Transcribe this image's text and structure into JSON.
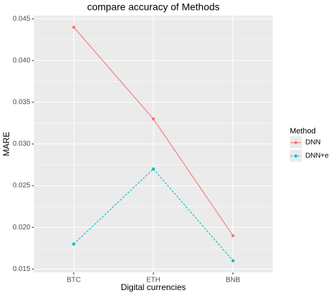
{
  "chart_data": {
    "type": "line",
    "title": "compare accuracy of Methods",
    "x_label": "Digital currencies",
    "y_label": "MARE",
    "categories": [
      "BTC",
      "ETH",
      "BNB"
    ],
    "series": [
      {
        "name": "DNN",
        "color": "#F8766D",
        "linestyle": "solid",
        "values": [
          0.044,
          0.033,
          0.019
        ]
      },
      {
        "name": "DNN+e",
        "color": "#00BFC4",
        "linestyle": "dashed",
        "values": [
          0.018,
          0.027,
          0.016
        ]
      }
    ],
    "legend_title": "Method",
    "legend": "right",
    "ylim": [
      0.0146,
      0.0454
    ],
    "yticks": [
      0.015,
      {
        "value": 0.02,
        "label": "0.020"
      },
      0.025,
      {
        "value": 0.03,
        "label": "0.030"
      },
      0.035,
      {
        "value": 0.04,
        "label": "0.040"
      },
      0.045
    ],
    "grid": true
  }
}
